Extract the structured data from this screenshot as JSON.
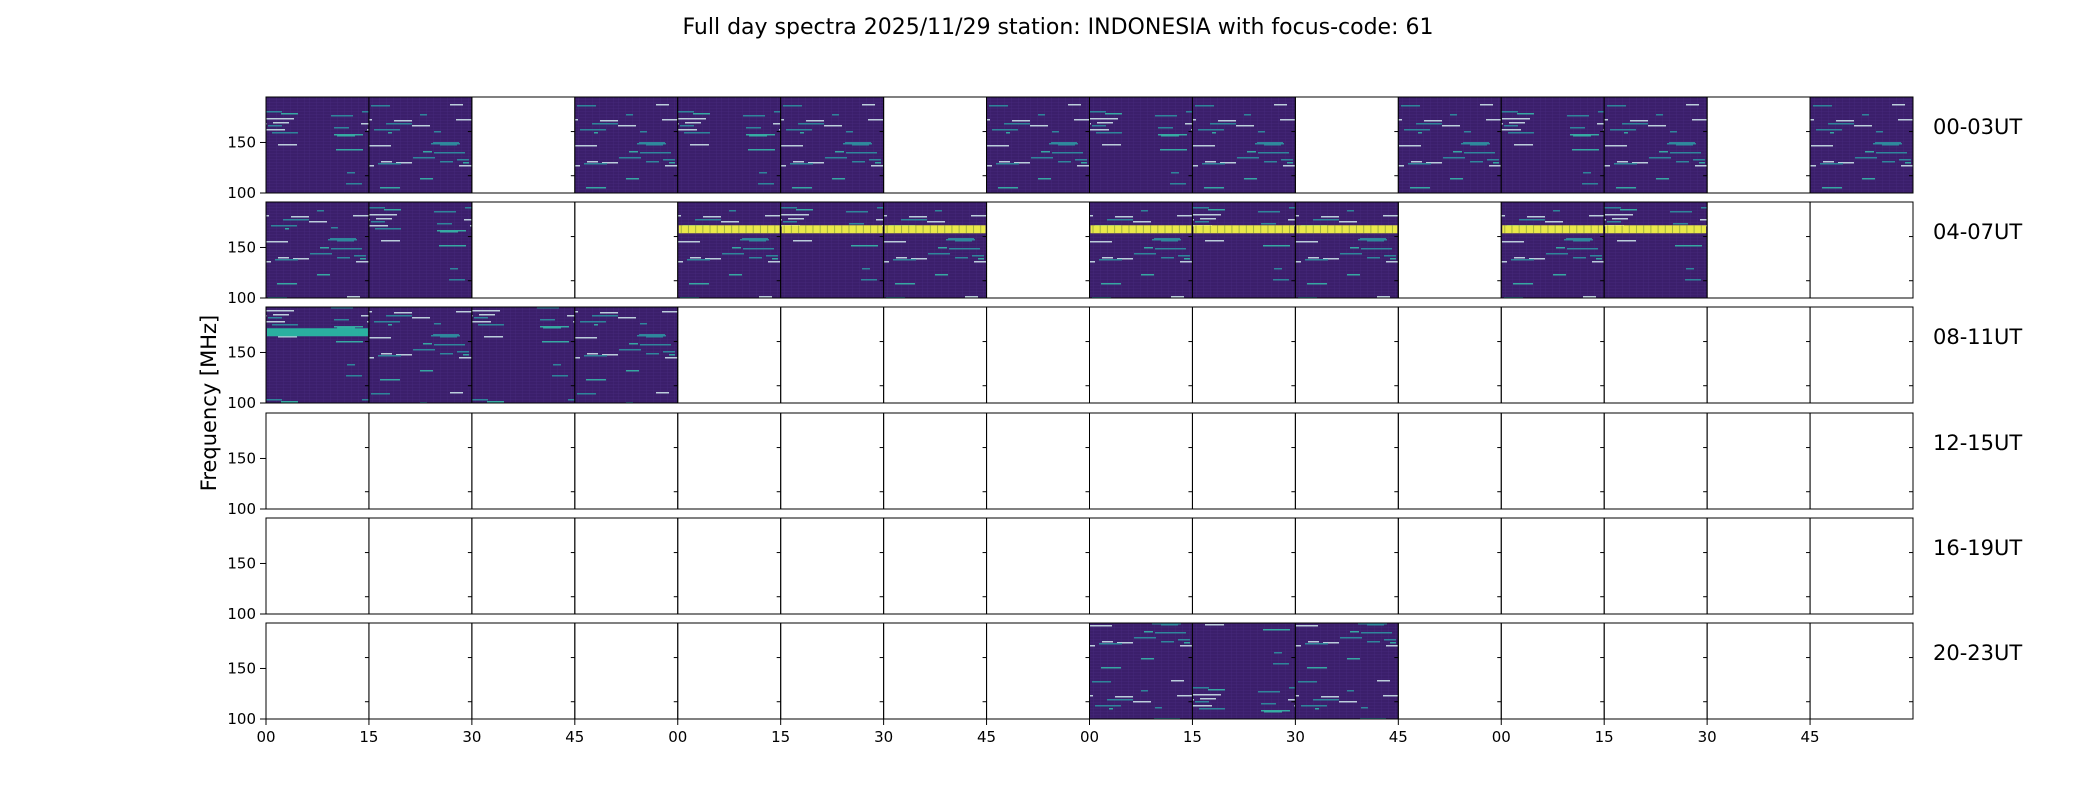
{
  "chart_data": {
    "type": "heatmap",
    "title": "Full day spectra 2025/11/29 station: INDONESIA with focus-code: 61",
    "ylabel": "Frequency [MHz]",
    "xlabel": "",
    "ylim": [
      100,
      195
    ],
    "y_ticks": [
      "100",
      "150"
    ],
    "x_ticks": [
      "00",
      "15",
      "30",
      "45",
      "00",
      "15",
      "30",
      "45",
      "00",
      "15",
      "30",
      "45",
      "00",
      "15",
      "30",
      "45"
    ],
    "colormap": {
      "low": "#3b1f6b",
      "mid": "#2ab0a0",
      "high": "#e9e84a"
    },
    "rows": [
      {
        "label": "00-03UT",
        "slots": [
          1,
          1,
          0,
          1,
          1,
          1,
          0,
          1,
          1,
          1,
          0,
          1,
          1,
          1,
          0,
          1
        ]
      },
      {
        "label": "04-07UT",
        "slots": [
          1,
          1,
          0,
          0,
          1,
          1,
          1,
          0,
          1,
          1,
          1,
          0,
          1,
          1,
          0,
          0
        ]
      },
      {
        "label": "08-11UT",
        "slots": [
          1,
          1,
          1,
          1,
          0,
          0,
          0,
          0,
          0,
          0,
          0,
          0,
          0,
          0,
          0,
          0
        ]
      },
      {
        "label": "12-15UT",
        "slots": [
          0,
          0,
          0,
          0,
          0,
          0,
          0,
          0,
          0,
          0,
          0,
          0,
          0,
          0,
          0,
          0
        ]
      },
      {
        "label": "16-19UT",
        "slots": [
          0,
          0,
          0,
          0,
          0,
          0,
          0,
          0,
          0,
          0,
          0,
          0,
          0,
          0,
          0,
          0
        ]
      },
      {
        "label": "20-23UT",
        "slots": [
          0,
          0,
          0,
          0,
          0,
          0,
          0,
          0,
          1,
          1,
          1,
          0,
          0,
          0,
          0,
          0
        ]
      }
    ],
    "bright_band_slots": [
      [
        1,
        4
      ],
      [
        1,
        5
      ],
      [
        1,
        6
      ],
      [
        1,
        8
      ],
      [
        1,
        9
      ],
      [
        1,
        10
      ],
      [
        1,
        12
      ],
      [
        1,
        13
      ]
    ],
    "teal_band_slots": [
      [
        2,
        0
      ]
    ]
  }
}
